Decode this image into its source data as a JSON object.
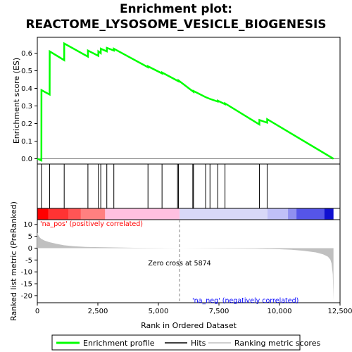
{
  "chart_data": {
    "type": "line",
    "title_line1": "Enrichment plot:",
    "title_line2": "REACTOME_LYSOSOME_VESICLE_BIOGENESIS",
    "xlabel": "Rank in Ordered Dataset",
    "xlim": [
      0,
      12500
    ],
    "x_ticks": [
      0,
      2500,
      5000,
      7500,
      10000,
      12500
    ],
    "x_tick_labels": [
      "0",
      "2,500",
      "5,000",
      "7,500",
      "10,000",
      "12,500"
    ],
    "es_panel": {
      "ylabel": "Enrichment score (ES)",
      "ylim": [
        -0.03,
        0.69
      ],
      "y_ticks": [
        0.0,
        0.1,
        0.2,
        0.3,
        0.4,
        0.5,
        0.6
      ],
      "y_tick_labels": [
        "0.0",
        "0.1",
        "0.2",
        "0.3",
        "0.4",
        "0.5",
        "0.6"
      ],
      "series": {
        "name": "Enrichment profile",
        "color": "#00ff00",
        "x": [
          0,
          170,
          171,
          510,
          511,
          1110,
          1111,
          2090,
          2091,
          2520,
          2521,
          2620,
          2621,
          2870,
          2871,
          3160,
          3161,
          4570,
          4571,
          5150,
          5151,
          5830,
          5831,
          6450,
          6451,
          6950,
          6951,
          7130,
          7131,
          7450,
          7451,
          7750,
          7751,
          9170,
          9171,
          9490,
          9491,
          12230
        ],
        "y": [
          0.0,
          -0.01,
          0.39,
          0.365,
          0.61,
          0.56,
          0.655,
          0.58,
          0.615,
          0.585,
          0.61,
          0.6,
          0.625,
          0.61,
          0.63,
          0.615,
          0.625,
          0.52,
          0.525,
          0.485,
          0.49,
          0.44,
          0.445,
          0.38,
          0.385,
          0.35,
          0.35,
          0.34,
          0.34,
          0.325,
          0.33,
          0.31,
          0.315,
          0.195,
          0.22,
          0.205,
          0.225,
          0.0
        ]
      }
    },
    "hits": {
      "name": "Hits",
      "positions": [
        170,
        510,
        1110,
        2090,
        2520,
        2620,
        2870,
        3160,
        4570,
        5150,
        5790,
        5830,
        6420,
        6450,
        6950,
        7130,
        7450,
        7750,
        9170,
        9490
      ]
    },
    "rank_panel": {
      "ylabel": "Ranked list metric (PreRanked)",
      "ylim": [
        -23,
        12
      ],
      "y_ticks": [
        10,
        5,
        0,
        -5,
        -10,
        -15,
        -20
      ],
      "y_tick_labels": [
        "10",
        "5",
        "0",
        "-5",
        "-10",
        "-15",
        "-20"
      ],
      "series": {
        "name": "Ranking metric scores",
        "color": "#c0c0c0",
        "x": [
          0,
          60,
          150,
          300,
          500,
          800,
          1100,
          1500,
          2000,
          3000,
          4000,
          5000,
          5874,
          7000,
          8000,
          9000,
          10000,
          10500,
          11000,
          11500,
          11800,
          12000,
          12100,
          12150,
          12200,
          12230
        ],
        "y": [
          6.5,
          5.0,
          4.0,
          3.2,
          2.5,
          1.8,
          1.2,
          0.8,
          0.5,
          0.3,
          0.15,
          0.05,
          0.0,
          -0.08,
          -0.15,
          -0.25,
          -0.45,
          -0.7,
          -1.1,
          -1.8,
          -2.6,
          -3.6,
          -4.8,
          -6.5,
          -11.0,
          -22.0
        ]
      },
      "zero_cross_label": "Zero cross at 5874",
      "zero_cross": 5874,
      "pos_label": "'na_pos' (positively correlated)",
      "neg_label": "'na_neg' (negatively correlated)",
      "pos_color": "#ff0000",
      "neg_color": "#0000ff"
    },
    "heat_bar": {
      "segments": [
        {
          "from": 0,
          "to": 450,
          "color": "#ff0000"
        },
        {
          "from": 450,
          "to": 1300,
          "color": "#ff3333"
        },
        {
          "from": 1300,
          "to": 1800,
          "color": "#ff5555"
        },
        {
          "from": 1800,
          "to": 2800,
          "color": "#ff8080"
        },
        {
          "from": 2800,
          "to": 5874,
          "color": "#ffc0e0"
        },
        {
          "from": 5874,
          "to": 9500,
          "color": "#d8d8f8"
        },
        {
          "from": 9500,
          "to": 10350,
          "color": "#c0c0f8"
        },
        {
          "from": 10350,
          "to": 10700,
          "color": "#9090f0"
        },
        {
          "from": 10700,
          "to": 11850,
          "color": "#5555e8"
        },
        {
          "from": 11850,
          "to": 12230,
          "color": "#1010d0"
        }
      ]
    },
    "legend": {
      "items": [
        {
          "label": "Enrichment profile",
          "color": "#00ff00"
        },
        {
          "label": "Hits",
          "color": "#000000"
        },
        {
          "label": "Ranking metric scores",
          "color": "#c0c0c0"
        }
      ]
    }
  }
}
